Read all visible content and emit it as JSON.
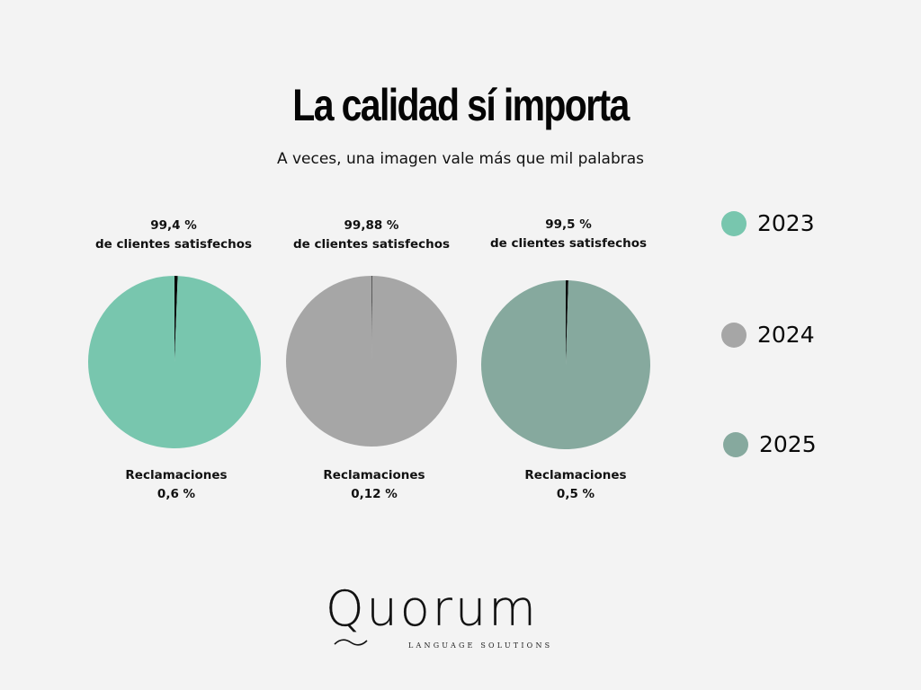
{
  "header": {
    "title": "La calidad sí importa",
    "subtitle": "A veces, una imagen vale más que mil palabras"
  },
  "chart_data": [
    {
      "type": "pie",
      "year": "2023",
      "satisfied_value": "99,4 %",
      "satisfied_label": "de clientes satisfechos",
      "claims_label": "Reclamaciones",
      "claims_value": "0,6 %",
      "slices": [
        {
          "label": "de clientes satisfechos",
          "value": 99.4,
          "color": "#78c6ae"
        },
        {
          "label": "Reclamaciones",
          "value": 0.6,
          "color": "#0a0a0a"
        }
      ]
    },
    {
      "type": "pie",
      "year": "2024",
      "satisfied_value": "99,88 %",
      "satisfied_label": "de clientes satisfechos",
      "claims_label": "Reclamaciones",
      "claims_value": "0,12 %",
      "slices": [
        {
          "label": "de clientes satisfechos",
          "value": 99.88,
          "color": "#a6a6a6"
        },
        {
          "label": "Reclamaciones",
          "value": 0.12,
          "color": "#0a0a0a"
        }
      ]
    },
    {
      "type": "pie",
      "year": "2025",
      "satisfied_value": "99,5 %",
      "satisfied_label": "de clientes satisfechos",
      "claims_label": "Reclamaciones",
      "claims_value": "0,5 %",
      "slices": [
        {
          "label": "de clientes satisfechos",
          "value": 99.5,
          "color": "#86a99e"
        },
        {
          "label": "Reclamaciones",
          "value": 0.5,
          "color": "#0a0a0a"
        }
      ]
    }
  ],
  "legend": [
    {
      "label": "2023",
      "color": "#78c6ae"
    },
    {
      "label": "2024",
      "color": "#a6a6a6"
    },
    {
      "label": "2025",
      "color": "#86a99e"
    }
  ],
  "logo": {
    "name": "Quorum",
    "tagline": "LANGUAGE SOLUTIONS"
  }
}
